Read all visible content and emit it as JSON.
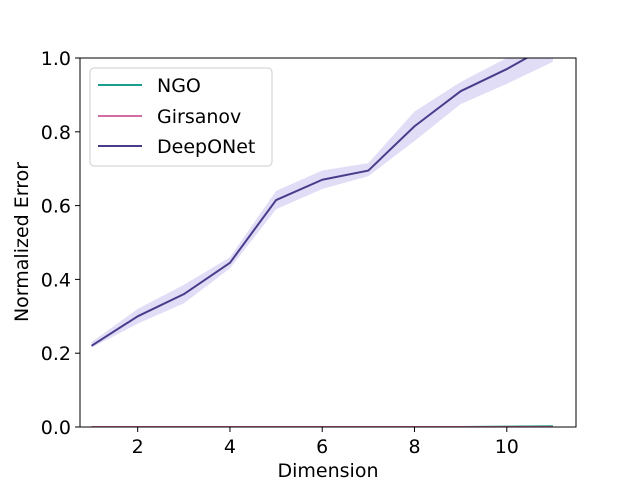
{
  "chart_data": {
    "type": "line",
    "xlabel": "Dimension",
    "ylabel": "Normalized Error",
    "xlim": [
      0.75,
      11.5
    ],
    "ylim": [
      0.0,
      1.0
    ],
    "xticks": [
      2,
      4,
      6,
      8,
      10
    ],
    "yticks": [
      0.0,
      0.2,
      0.4,
      0.6,
      0.8,
      1.0
    ],
    "xtick_labels": [
      "2",
      "4",
      "6",
      "8",
      "10"
    ],
    "ytick_labels": [
      "0.0",
      "0.2",
      "0.4",
      "0.6",
      "0.8",
      "1.0"
    ],
    "grid": false,
    "legend_position": "top-left",
    "x": [
      1,
      2,
      3,
      4,
      5,
      6,
      7,
      8,
      9,
      10,
      11
    ],
    "series": [
      {
        "name": "NGO",
        "color": "#1a9e8f",
        "values": [
          0.0,
          0.0,
          0.0,
          0.0,
          0.0,
          0.0,
          0.0,
          0.0,
          0.0,
          0.001,
          0.002
        ],
        "lower": [
          0.0,
          0.0,
          0.0,
          0.0,
          0.0,
          0.0,
          0.0,
          0.0,
          0.0,
          0.0,
          0.001
        ],
        "upper": [
          0.0,
          0.0,
          0.0,
          0.0,
          0.0,
          0.0,
          0.0,
          0.0,
          0.0,
          0.002,
          0.004
        ]
      },
      {
        "name": "Girsanov",
        "color": "#d36ba5",
        "values": [
          0.0,
          0.0,
          0.0,
          0.0,
          0.0,
          0.0,
          0.0,
          0.0,
          0.0,
          0.0,
          0.0
        ],
        "lower": [
          0.0,
          0.0,
          0.0,
          0.0,
          0.0,
          0.0,
          0.0,
          0.0,
          0.0,
          0.0,
          0.0
        ],
        "upper": [
          0.0,
          0.0,
          0.0,
          0.0,
          0.0,
          0.0,
          0.0,
          0.0,
          0.0,
          0.0,
          0.0
        ]
      },
      {
        "name": "DeepONet",
        "color": "#483d8b",
        "band_color": "#8878e0",
        "values": [
          0.22,
          0.3,
          0.36,
          0.445,
          0.615,
          0.67,
          0.695,
          0.815,
          0.91,
          0.97,
          1.04
        ],
        "lower": [
          0.215,
          0.28,
          0.335,
          0.43,
          0.59,
          0.645,
          0.68,
          0.775,
          0.875,
          0.93,
          0.99
        ],
        "upper": [
          0.23,
          0.32,
          0.385,
          0.46,
          0.64,
          0.695,
          0.715,
          0.855,
          0.935,
          1.0,
          1.09
        ]
      }
    ]
  }
}
